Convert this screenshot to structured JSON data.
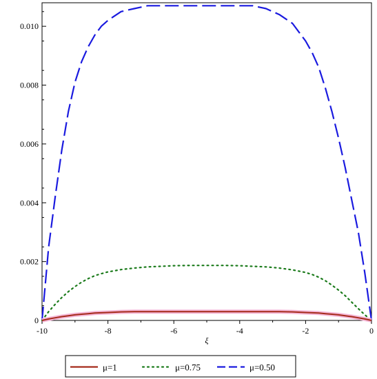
{
  "chart_data": {
    "type": "line",
    "title": "",
    "xlabel": "ξ",
    "ylabel": "",
    "xlim": [
      -10,
      0
    ],
    "ylim": [
      0,
      0.0108
    ],
    "x_ticks": [
      -10,
      -8,
      -6,
      -4,
      -2,
      0
    ],
    "x_tick_labels": [
      "-10",
      "-8",
      "-6",
      "-4",
      "-2",
      "0"
    ],
    "y_ticks": [
      0,
      0.002,
      0.004,
      0.006,
      0.008,
      0.01
    ],
    "y_tick_labels": [
      "0",
      "0.002",
      "0.004",
      "0.006",
      "0.008",
      "0.010"
    ],
    "grid": false,
    "legend_position": "bottom",
    "x": [
      -10,
      -9.8,
      -9.6,
      -9.4,
      -9.2,
      -9,
      -8.8,
      -8.6,
      -8.4,
      -8.2,
      -8,
      -7.6,
      -7.2,
      -6.8,
      -6.4,
      -6,
      -5.5,
      -5,
      -4.5,
      -4,
      -3.6,
      -3.2,
      -2.8,
      -2.4,
      -2,
      -1.8,
      -1.6,
      -1.4,
      -1.2,
      -1,
      -0.8,
      -0.6,
      -0.4,
      -0.2,
      0
    ],
    "series": [
      {
        "name": "μ=1",
        "color": "#a52a1a",
        "style": "solid",
        "values": [
          0,
          5e-05,
          9e-05,
          0.00013,
          0.00016,
          0.00019,
          0.00021,
          0.00023,
          0.00025,
          0.00026,
          0.00027,
          0.00029,
          0.0003,
          0.0003,
          0.0003,
          0.0003,
          0.0003,
          0.0003,
          0.0003,
          0.0003,
          0.0003,
          0.0003,
          0.0003,
          0.00029,
          0.00027,
          0.00026,
          0.00025,
          0.00023,
          0.00021,
          0.00019,
          0.00016,
          0.00013,
          9e-05,
          5e-05,
          0
        ]
      },
      {
        "name": "μ=0.75",
        "color": "#1a7a1a",
        "style": "dotted",
        "values": [
          0,
          0.0003,
          0.00055,
          0.00078,
          0.00098,
          0.00115,
          0.0013,
          0.00142,
          0.00152,
          0.00159,
          0.00165,
          0.00173,
          0.00178,
          0.00182,
          0.00184,
          0.00186,
          0.00187,
          0.00187,
          0.00187,
          0.00186,
          0.00184,
          0.00182,
          0.00178,
          0.00172,
          0.00163,
          0.00156,
          0.00147,
          0.00135,
          0.0012,
          0.00103,
          0.00084,
          0.00062,
          0.0004,
          0.00019,
          0
        ]
      },
      {
        "name": "μ=0.50",
        "color": "#1a1adf",
        "style": "dashed",
        "values": [
          0,
          0.0025,
          0.0042,
          0.0058,
          0.0071,
          0.0081,
          0.0088,
          0.0093,
          0.0097,
          0.01,
          0.0102,
          0.0105,
          0.0106,
          0.0107,
          0.0107,
          0.0107,
          0.0107,
          0.0107,
          0.0107,
          0.0107,
          0.0107,
          0.0106,
          0.0104,
          0.0101,
          0.0095,
          0.0091,
          0.0086,
          0.0079,
          0.0071,
          0.0062,
          0.0052,
          0.0041,
          0.003,
          0.0016,
          0
        ]
      }
    ]
  }
}
